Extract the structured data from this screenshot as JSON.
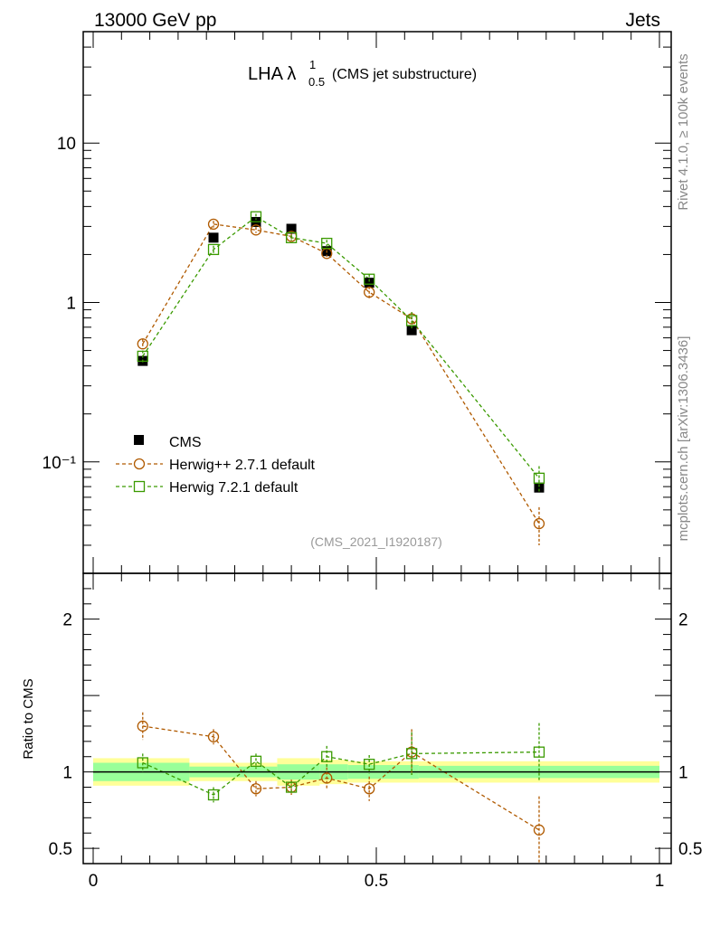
{
  "header": {
    "left": "13000 GeV pp",
    "right": "Jets"
  },
  "side_labels": {
    "rivet": "Rivet 4.1.0, ≥ 100k events",
    "mcplots": "mcplots.cern.ch [arXiv:1306.3436]"
  },
  "chart_data": {
    "type": "scatter",
    "title_main": "LHA λ",
    "title_sup": "1",
    "title_sub": "0.5",
    "title_suffix": "(CMS jet substructure)",
    "analysis_id": "(CMS_2021_I1920187)",
    "xlim": [
      0,
      1
    ],
    "x_ticks": [
      "0",
      "0.5",
      "1"
    ],
    "main": {
      "yscale": "log",
      "ylim": [
        0.02,
        50
      ],
      "y_ticks": [
        "10⁻¹",
        "1",
        "10"
      ],
      "series": [
        {
          "name": "CMS",
          "marker": "filled-square",
          "color": "#000000",
          "x": [
            0.0875,
            0.2125,
            0.2875,
            0.35,
            0.4125,
            0.4875,
            0.5625,
            0.7875
          ],
          "y": [
            0.43,
            2.55,
            3.2,
            2.9,
            2.1,
            1.33,
            0.67,
            0.069
          ]
        },
        {
          "name": "Herwig++ 2.7.1 default",
          "marker": "open-circle",
          "color": "#b05a00",
          "x": [
            0.0875,
            0.2125,
            0.2875,
            0.35,
            0.4125,
            0.4875,
            0.5625,
            0.7875
          ],
          "y": [
            0.55,
            3.1,
            2.85,
            2.6,
            2.03,
            1.16,
            0.79,
            0.041
          ],
          "err": [
            0.04,
            0.15,
            0.12,
            0.1,
            0.1,
            0.1,
            0.08,
            0.011
          ]
        },
        {
          "name": "Herwig 7.2.1 default",
          "marker": "open-square",
          "color": "#3a9a00",
          "x": [
            0.0875,
            0.2125,
            0.2875,
            0.35,
            0.4125,
            0.4875,
            0.5625,
            0.7875
          ],
          "y": [
            0.46,
            2.15,
            3.45,
            2.55,
            2.35,
            1.4,
            0.77,
            0.079
          ],
          "err": [
            0.04,
            0.12,
            0.15,
            0.1,
            0.12,
            0.1,
            0.1,
            0.015
          ]
        }
      ]
    },
    "ratio": {
      "ylabel": "Ratio to CMS",
      "ylim": [
        0.4,
        2.3
      ],
      "y_ticks": [
        "0.5",
        "1",
        "2"
      ],
      "bands": {
        "edges": [
          0,
          0.17,
          0.325,
          0.4,
          0.45,
          0.575,
          1
        ],
        "inner": [
          0.06,
          0.035,
          0.05,
          0.05,
          0.045,
          0.04
        ],
        "outer": [
          0.09,
          0.06,
          0.09,
          0.08,
          0.07,
          0.07
        ]
      },
      "series": [
        {
          "name": "Herwig++ 2.7.1 default",
          "y": [
            1.3,
            1.23,
            0.89,
            0.9,
            0.96,
            0.89,
            1.13,
            0.62
          ],
          "err": [
            0.09,
            0.05,
            0.05,
            0.05,
            0.07,
            0.08,
            0.15,
            0.22
          ]
        },
        {
          "name": "Herwig 7.2.1 default",
          "y": [
            1.06,
            0.85,
            1.07,
            0.9,
            1.1,
            1.05,
            1.12,
            1.13
          ],
          "err": [
            0.06,
            0.05,
            0.05,
            0.04,
            0.07,
            0.06,
            0.14,
            0.19
          ]
        }
      ]
    }
  }
}
